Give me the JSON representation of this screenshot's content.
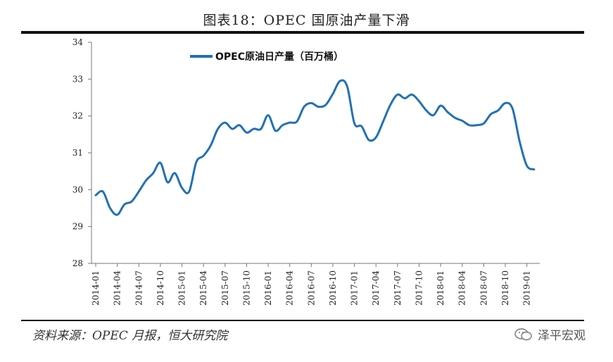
{
  "page": {
    "title": "图表18：OPEC 国原油产量下滑",
    "source": "资料来源：OPEC 月报，恒大研究院",
    "watermark": "泽平宏观"
  },
  "chart_data": {
    "type": "line",
    "title": "图表18：OPEC 国原油产量下滑",
    "xlabel": "",
    "ylabel": "",
    "ylim": [
      28,
      34
    ],
    "yticks": [
      28,
      29,
      30,
      31,
      32,
      33,
      34
    ],
    "xtick_labels": [
      "2014-01",
      "2014-04",
      "2014-07",
      "2014-10",
      "2015-01",
      "2015-04",
      "2015-07",
      "2015-10",
      "2016-01",
      "2016-04",
      "2016-07",
      "2016-10",
      "2017-01",
      "2017-04",
      "2017-07",
      "2017-10",
      "2018-01",
      "2018-04",
      "2018-07",
      "2018-10",
      "2019-01"
    ],
    "legend_position": "top-left",
    "grid": false,
    "series": [
      {
        "name": "OPEC原油日产量（百万桶）",
        "color": "#2271b3",
        "x": [
          "2014-01",
          "2014-02",
          "2014-03",
          "2014-04",
          "2014-05",
          "2014-06",
          "2014-07",
          "2014-08",
          "2014-09",
          "2014-10",
          "2014-11",
          "2014-12",
          "2015-01",
          "2015-02",
          "2015-03",
          "2015-04",
          "2015-05",
          "2015-06",
          "2015-07",
          "2015-08",
          "2015-09",
          "2015-10",
          "2015-11",
          "2015-12",
          "2016-01",
          "2016-02",
          "2016-03",
          "2016-04",
          "2016-05",
          "2016-06",
          "2016-07",
          "2016-08",
          "2016-09",
          "2016-10",
          "2016-11",
          "2016-12",
          "2017-01",
          "2017-02",
          "2017-03",
          "2017-04",
          "2017-05",
          "2017-06",
          "2017-07",
          "2017-08",
          "2017-09",
          "2017-10",
          "2017-11",
          "2017-12",
          "2018-01",
          "2018-02",
          "2018-03",
          "2018-04",
          "2018-05",
          "2018-06",
          "2018-07",
          "2018-08",
          "2018-09",
          "2018-10",
          "2018-11",
          "2018-12",
          "2019-01",
          "2019-02"
        ],
        "values": [
          29.85,
          29.95,
          29.5,
          29.32,
          29.6,
          29.68,
          29.95,
          30.25,
          30.45,
          30.73,
          30.2,
          30.45,
          30.05,
          29.95,
          30.75,
          30.92,
          31.2,
          31.65,
          31.82,
          31.65,
          31.75,
          31.55,
          31.65,
          31.65,
          32.02,
          31.6,
          31.75,
          31.82,
          31.85,
          32.25,
          32.35,
          32.25,
          32.3,
          32.6,
          32.95,
          32.8,
          31.8,
          31.72,
          31.35,
          31.42,
          31.85,
          32.3,
          32.58,
          32.48,
          32.58,
          32.4,
          32.15,
          32.02,
          32.28,
          32.1,
          31.95,
          31.87,
          31.75,
          31.75,
          31.8,
          32.05,
          32.15,
          32.35,
          32.2,
          31.3,
          30.65,
          30.55
        ]
      }
    ]
  }
}
